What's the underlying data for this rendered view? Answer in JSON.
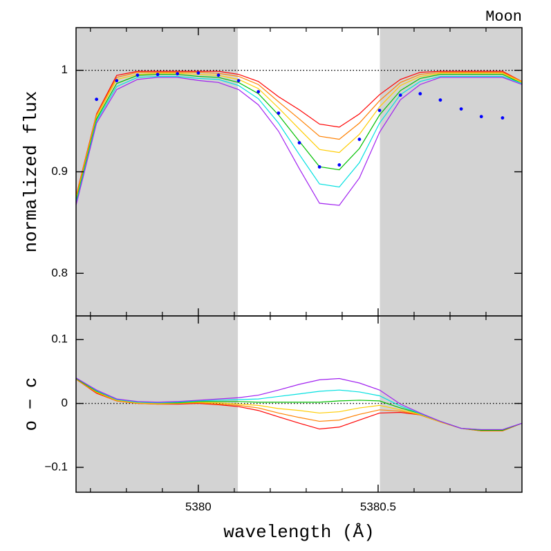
{
  "chart_data": [
    {
      "type": "line",
      "title": "Moon",
      "ylabel": "normalized flux",
      "xlim": [
        5379.66,
        5380.9
      ],
      "ylim": [
        0.758,
        1.042
      ],
      "xticks": [
        5380,
        5380.5
      ],
      "xminorticks": [
        5379.7,
        5379.8,
        5379.9,
        5380.1,
        5380.2,
        5380.3,
        5380.4,
        5380.6,
        5380.7,
        5380.8
      ],
      "xtick_labels": false,
      "yticks": [
        0.8,
        0.9,
        1
      ],
      "hline": 1,
      "shaded_regions": [
        [
          5379.66,
          5380.11
        ],
        [
          5380.505,
          5380.9
        ]
      ],
      "shade_color": "#d3d3d3",
      "x": [
        5379.66,
        5379.717,
        5379.773,
        5379.831,
        5379.887,
        5379.942,
        5380.0,
        5380.056,
        5380.112,
        5380.167,
        5380.223,
        5380.281,
        5380.337,
        5380.392,
        5380.448,
        5380.504,
        5380.562,
        5380.617,
        5380.673,
        5380.731,
        5380.787,
        5380.846,
        5380.9
      ],
      "series": [
        {
          "color": "#ff0000",
          "values": [
            0.876,
            0.957,
            0.995,
            0.999,
            0.999,
            0.999,
            0.999,
            0.999,
            0.996,
            0.989,
            0.974,
            0.961,
            0.947,
            0.944,
            0.957,
            0.976,
            0.991,
            0.998,
            0.999,
            0.999,
            0.999,
            0.999,
            0.989
          ]
        },
        {
          "color": "#ff8000",
          "values": [
            0.875,
            0.956,
            0.993,
            0.998,
            0.998,
            0.998,
            0.998,
            0.997,
            0.994,
            0.986,
            0.969,
            0.952,
            0.935,
            0.932,
            0.948,
            0.97,
            0.988,
            0.996,
            0.998,
            0.998,
            0.998,
            0.998,
            0.989
          ]
        },
        {
          "color": "#ffcc00",
          "values": [
            0.873,
            0.954,
            0.991,
            0.996,
            0.997,
            0.997,
            0.996,
            0.995,
            0.991,
            0.982,
            0.963,
            0.942,
            0.922,
            0.919,
            0.937,
            0.964,
            0.985,
            0.994,
            0.997,
            0.997,
            0.997,
            0.997,
            0.988
          ]
        },
        {
          "color": "#00c000",
          "values": [
            0.871,
            0.952,
            0.987,
            0.995,
            0.996,
            0.996,
            0.994,
            0.993,
            0.988,
            0.977,
            0.956,
            0.93,
            0.905,
            0.902,
            0.923,
            0.956,
            0.98,
            0.992,
            0.996,
            0.996,
            0.996,
            0.996,
            0.987
          ]
        },
        {
          "color": "#00e0e0",
          "values": [
            0.869,
            0.95,
            0.984,
            0.993,
            0.994,
            0.994,
            0.992,
            0.991,
            0.985,
            0.972,
            0.948,
            0.917,
            0.888,
            0.885,
            0.909,
            0.948,
            0.976,
            0.989,
            0.994,
            0.994,
            0.994,
            0.994,
            0.987
          ]
        },
        {
          "color": "#a020f0",
          "values": [
            0.867,
            0.948,
            0.981,
            0.991,
            0.993,
            0.993,
            0.99,
            0.988,
            0.981,
            0.966,
            0.94,
            0.903,
            0.869,
            0.867,
            0.894,
            0.939,
            0.971,
            0.986,
            0.993,
            0.993,
            0.993,
            0.993,
            0.986
          ]
        }
      ],
      "points": {
        "color": "#0000ff",
        "x": [
          5379.717,
          5379.773,
          5379.831,
          5379.887,
          5379.942,
          5380.0,
          5380.056,
          5380.112,
          5380.167,
          5380.223,
          5380.281,
          5380.337,
          5380.392,
          5380.448,
          5380.504,
          5380.562,
          5380.617,
          5380.673,
          5380.731,
          5380.787,
          5380.846
        ],
        "values": [
          0.9714,
          0.9898,
          0.9952,
          0.9959,
          0.9966,
          0.9973,
          0.9952,
          0.9898,
          0.9789,
          0.9578,
          0.9286,
          0.9048,
          0.9068,
          0.932,
          0.9605,
          0.9755,
          0.9769,
          0.9707,
          0.9619,
          0.9544,
          0.9531
        ]
      }
    },
    {
      "type": "line",
      "ylabel": "o − c",
      "xlabel": "wavelength (Å)",
      "xlim": [
        5379.66,
        5380.9
      ],
      "ylim": [
        -0.139,
        0.137
      ],
      "xticks": [
        5380,
        5380.5
      ],
      "xminorticks": [
        5379.7,
        5379.8,
        5379.9,
        5380.1,
        5380.2,
        5380.3,
        5380.4,
        5380.6,
        5380.7,
        5380.8
      ],
      "xtick_labels": true,
      "yticks": [
        {
          "value": -0.1,
          "label": "−0.1"
        },
        0,
        0.1
      ],
      "hline": 0,
      "shaded_regions": [
        [
          5379.66,
          5380.11
        ],
        [
          5380.505,
          5380.9
        ]
      ],
      "shade_color": "#d3d3d3",
      "x": [
        5379.66,
        5379.717,
        5379.773,
        5379.831,
        5379.887,
        5379.942,
        5380.0,
        5380.056,
        5380.112,
        5380.167,
        5380.223,
        5380.281,
        5380.337,
        5380.392,
        5380.448,
        5380.504,
        5380.562,
        5380.617,
        5380.673,
        5380.731,
        5380.787,
        5380.846,
        5380.9
      ],
      "series": [
        {
          "color": "#ff0000",
          "values": [
            0.038,
            0.016,
            0.004,
            0,
            -0.001,
            -0.001,
            0,
            -0.002,
            -0.005,
            -0.011,
            -0.021,
            -0.031,
            -0.04,
            -0.037,
            -0.026,
            -0.015,
            -0.014,
            -0.018,
            -0.029,
            -0.039,
            -0.043,
            -0.043,
            -0.031
          ]
        },
        {
          "color": "#ff8000",
          "values": [
            0.038,
            0.017,
            0.004,
            0,
            -0.001,
            0,
            0.001,
            -0.001,
            -0.003,
            -0.007,
            -0.015,
            -0.022,
            -0.028,
            -0.026,
            -0.017,
            -0.01,
            -0.012,
            -0.018,
            -0.029,
            -0.039,
            -0.043,
            -0.043,
            -0.031
          ]
        },
        {
          "color": "#ffcc00",
          "values": [
            0.039,
            0.018,
            0.005,
            0.001,
            0,
            0,
            0.002,
            0.001,
            -0.001,
            -0.003,
            -0.008,
            -0.011,
            -0.015,
            -0.013,
            -0.007,
            -0.003,
            -0.01,
            -0.017,
            -0.029,
            -0.039,
            -0.042,
            -0.042,
            -0.031
          ]
        },
        {
          "color": "#00c000",
          "values": [
            0.039,
            0.019,
            0.006,
            0.002,
            0.001,
            0.001,
            0.003,
            0.003,
            0.003,
            0.002,
            0.002,
            0.002,
            0.002,
            0.004,
            0.005,
            0.004,
            -0.007,
            -0.016,
            -0.028,
            -0.039,
            -0.042,
            -0.042,
            -0.031
          ]
        },
        {
          "color": "#00e0e0",
          "values": [
            0.04,
            0.02,
            0.006,
            0.002,
            0.001,
            0.002,
            0.004,
            0.005,
            0.006,
            0.007,
            0.011,
            0.015,
            0.019,
            0.021,
            0.018,
            0.012,
            -0.004,
            -0.016,
            -0.028,
            -0.039,
            -0.041,
            -0.041,
            -0.031
          ]
        },
        {
          "color": "#a020f0",
          "values": [
            0.04,
            0.021,
            0.007,
            0.003,
            0.002,
            0.003,
            0.005,
            0.007,
            0.009,
            0.013,
            0.021,
            0.03,
            0.037,
            0.039,
            0.032,
            0.021,
            -0.001,
            -0.015,
            -0.028,
            -0.039,
            -0.041,
            -0.041,
            -0.031
          ]
        }
      ]
    }
  ]
}
